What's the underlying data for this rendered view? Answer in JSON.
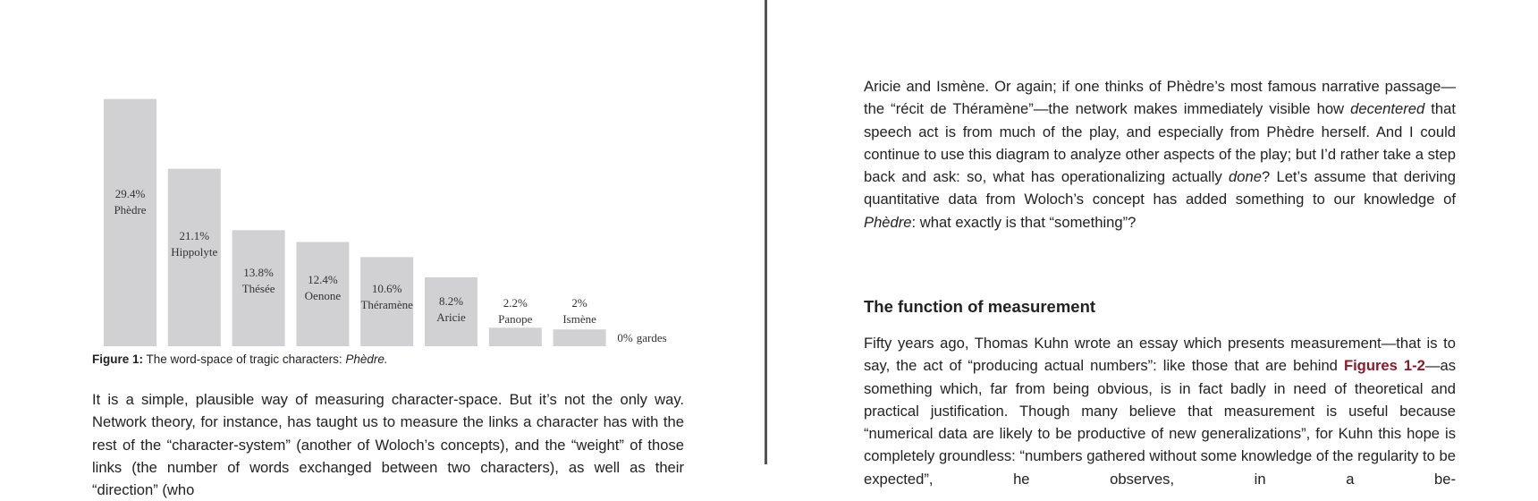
{
  "chart_data": {
    "type": "bar",
    "categories": [
      "Phèdre",
      "Hippolyte",
      "Thésée",
      "Oenone",
      "Théramène",
      "Aricie",
      "Panope",
      "Ismène",
      "gardes"
    ],
    "values": [
      29.4,
      21.1,
      13.8,
      12.4,
      10.6,
      8.2,
      2.2,
      2,
      0
    ],
    "value_labels": [
      "29.4%",
      "21.1%",
      "13.8%",
      "12.4%",
      "10.6%",
      "8.2%",
      "2.2%",
      "2%",
      "0%"
    ],
    "color": "#d1d1d3"
  },
  "caption": {
    "label": "Figure 1:",
    "text": "The word-space of tragic characters: ",
    "title": "Phèdre."
  },
  "left_text": {
    "paragraph": "It is a simple, plausible way of measuring character-space. But it’s not the only way. Network theory, for instance, has taught us to measure the links a character has with the rest of the “character-system” (another of Woloch’s concepts), and the “weight” of those links (the number of words exchanged between two characters), as well as their “direction” (who"
  },
  "right_text": {
    "paragraph_1": [
      "Aricie and Ismène. Or again; if one thinks of Phèdre’s most famous narrative passage—the “récit de Théramène”—the network makes immediately visible how ",
      "decentered",
      " that speech act is from much of the play, and especially from Phèdre herself. And I could continue to use this diagram to analyze other aspects of the play; but I’d rather take a step back and ask: so, what has operationalizing actually ",
      "done",
      "? Let’s assume that deriving quantitative data from Woloch’s concept has added something to our knowledge of ",
      "Phèdre",
      ": what exactly is that “something”?"
    ],
    "heading": "The function of measurement",
    "paragraph_2": [
      "Fifty years ago, Thomas Kuhn wrote an essay which presents measurement—that is to say, the act of “producing actual numbers”: like those that are behind ",
      "Figures 1-2",
      "—as something which, far from being obvious, is in fact badly in need of theoretical and practical justification. Though many believe that measurement is useful because “numerical data are likely to be productive of new generalizations”, for Kuhn this hope is completely groundless: “numbers gathered without some knowledge of the regularity to be expected”, he observes, in a be-"
    ]
  }
}
